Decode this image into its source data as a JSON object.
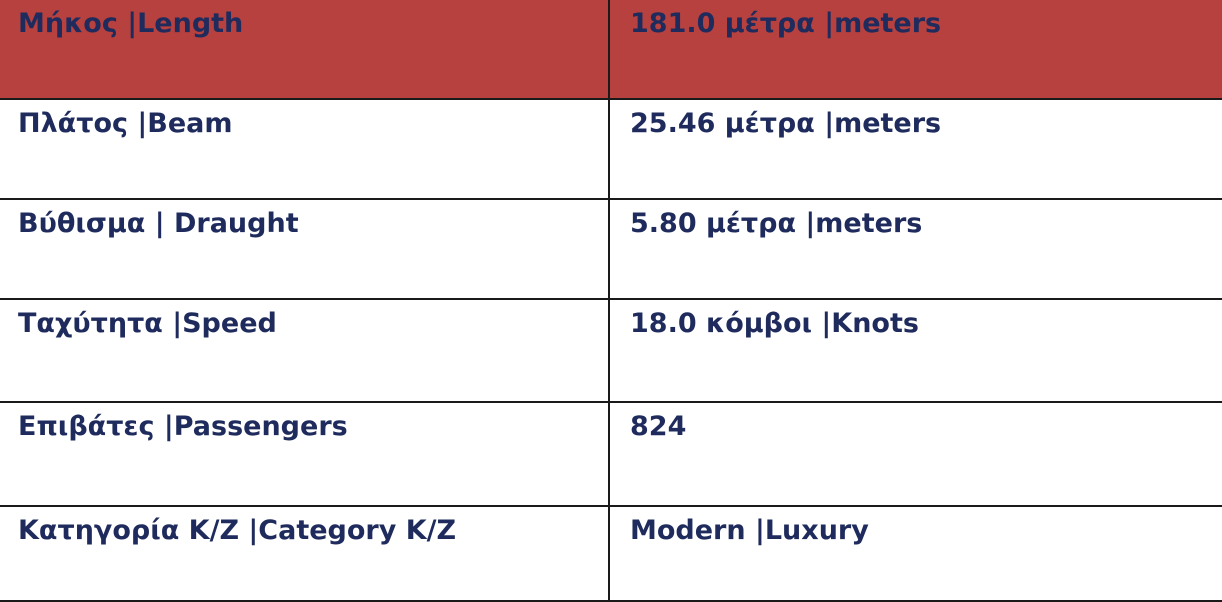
{
  "table": {
    "rows": [
      [
        "Μήκος |Length",
        "181.0 μέτρα |meters"
      ],
      [
        "Πλάτος |Beam",
        "25.46 μέτρα |meters"
      ],
      [
        "Βύθισμα | Draught",
        "5.80 μέτρα |meters"
      ],
      [
        "Ταχύτητα |Speed",
        "18.0 κόμβοι |Knots"
      ],
      [
        "Επιβάτες |Passengers",
        "824"
      ],
      [
        "Κατηγορία Κ/Ζ |Category Κ/Ζ",
        "Modern |Luxury"
      ]
    ]
  }
}
